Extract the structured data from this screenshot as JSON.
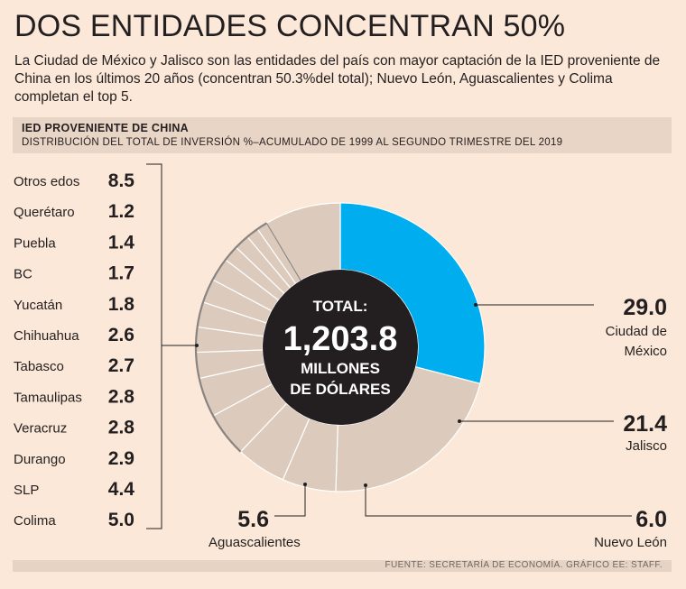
{
  "header": {
    "title": "DOS ENTIDADES CONCENTRAN 50%",
    "subtitle": "La Ciudad de México y Jalisco son las entidades del país con mayor captación de la IED proveniente de China en los últimos 20 años (concentran 50.3%del total); Nuevo León, Aguascalientes y Colima completan el top 5."
  },
  "chart_header": {
    "title": "IED PROVENIENTE DE CHINA",
    "subtitle": "DISTRIBUCIÓN DEL TOTAL DE INVERSIÓN %–ACUMULADO DE 1999 AL SEGUNDO TRIMESTRE DEL 2019"
  },
  "center": {
    "line1": "TOTAL:",
    "line2": "1,203.8",
    "line3": "MILLONES",
    "line4": "DE DÓLARES"
  },
  "source": "FUENTE: SECRETARÍA DE ECONOMÍA. GRÁFICO EE: STAFF.",
  "colors": {
    "background": "#fbe8d8",
    "highlight": "#00aeef",
    "segment": "#dccbbd",
    "center": "#231f20",
    "separator": "#ffffff"
  },
  "chart_data": {
    "type": "pie",
    "variant": "donut",
    "unit": "%",
    "slices": [
      {
        "label": "Ciudad de México",
        "value": 29.0,
        "display": "29.0"
      },
      {
        "label": "Jalisco",
        "value": 21.4,
        "display": "21.4"
      },
      {
        "label": "Nuevo León",
        "value": 6.0,
        "display": "6.0"
      },
      {
        "label": "Aguascalientes",
        "value": 5.6,
        "display": "5.6"
      },
      {
        "label": "Colima",
        "value": 5.0,
        "display": "5.0"
      },
      {
        "label": "SLP",
        "value": 4.4,
        "display": "4.4"
      },
      {
        "label": "Durango",
        "value": 2.9,
        "display": "2.9"
      },
      {
        "label": "Veracruz",
        "value": 2.8,
        "display": "2.8"
      },
      {
        "label": "Tamaulipas",
        "value": 2.8,
        "display": "2.8"
      },
      {
        "label": "Tabasco",
        "value": 2.7,
        "display": "2.7"
      },
      {
        "label": "Chihuahua",
        "value": 2.6,
        "display": "2.6"
      },
      {
        "label": "Yucatán",
        "value": 1.8,
        "display": "1.8"
      },
      {
        "label": "BC",
        "value": 1.7,
        "display": "1.7"
      },
      {
        "label": "Puebla",
        "value": 1.4,
        "display": "1.4"
      },
      {
        "label": "Querétaro",
        "value": 1.2,
        "display": "1.2"
      },
      {
        "label": "Otros edos",
        "value": 8.5,
        "display": "8.5"
      }
    ],
    "list_order": [
      "Otros edos",
      "Querétaro",
      "Puebla",
      "BC",
      "Yucatán",
      "Chihuahua",
      "Tabasco",
      "Tamaulipas",
      "Veracruz",
      "Durango",
      "SLP",
      "Colima"
    ],
    "callouts": [
      "Ciudad de México",
      "Jalisco",
      "Nuevo León",
      "Aguascalientes"
    ],
    "highlighted": "Ciudad de México"
  }
}
